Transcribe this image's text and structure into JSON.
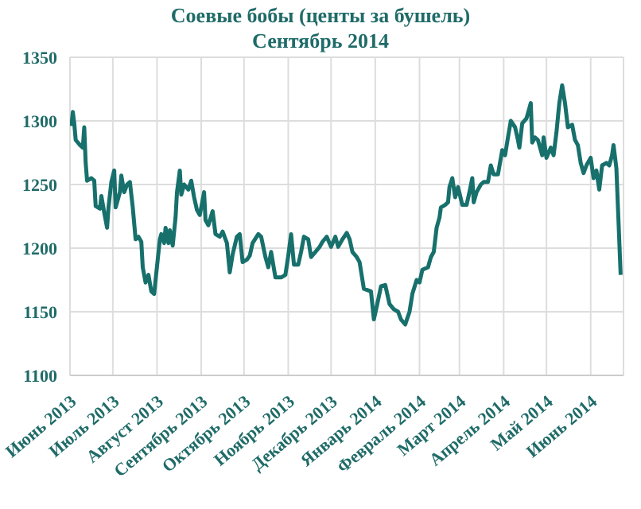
{
  "chart_data": {
    "type": "line",
    "title": "Соевые бобы (центы за бушель)",
    "subtitle": "Сентябрь 2014",
    "x": [
      "2013-06-02",
      "2013-06-03",
      "2013-06-04",
      "2013-06-05",
      "2013-06-08",
      "2013-06-10",
      "2013-06-11",
      "2013-06-12",
      "2013-06-13",
      "2013-06-16",
      "2013-06-18",
      "2013-06-19",
      "2013-06-22",
      "2013-06-23",
      "2013-06-25",
      "2013-06-27",
      "2013-06-28",
      "2013-06-30",
      "2013-07-02",
      "2013-07-03",
      "2013-07-06",
      "2013-07-07",
      "2013-07-09",
      "2013-07-11",
      "2013-07-13",
      "2013-07-15",
      "2013-07-17",
      "2013-07-19",
      "2013-07-21",
      "2013-07-22",
      "2013-07-24",
      "2013-07-26",
      "2013-07-28",
      "2013-07-30",
      "2013-07-31",
      "2013-08-03",
      "2013-08-04",
      "2013-08-06",
      "2013-08-07",
      "2013-08-09",
      "2013-08-10",
      "2013-08-12",
      "2013-08-14",
      "2013-08-15",
      "2013-08-17",
      "2013-08-18",
      "2013-08-20",
      "2013-08-23",
      "2013-08-25",
      "2013-08-27",
      "2013-08-29",
      "2013-08-31",
      "2013-09-03",
      "2013-09-04",
      "2013-09-06",
      "2013-09-09",
      "2013-09-11",
      "2013-09-14",
      "2013-09-16",
      "2013-09-19",
      "2013-09-21",
      "2013-09-23",
      "2013-09-26",
      "2013-09-28",
      "2013-09-30",
      "2013-10-03",
      "2013-10-05",
      "2013-10-07",
      "2013-10-11",
      "2013-10-13",
      "2013-10-16",
      "2013-10-18",
      "2013-10-20",
      "2013-10-23",
      "2013-10-27",
      "2013-10-30",
      "2013-11-01",
      "2013-11-03",
      "2013-11-05",
      "2013-11-08",
      "2013-11-10",
      "2013-11-12",
      "2013-11-15",
      "2013-11-17",
      "2013-11-20",
      "2013-11-23",
      "2013-11-25",
      "2013-11-28",
      "2013-12-01",
      "2013-12-04",
      "2013-12-06",
      "2013-12-09",
      "2013-12-12",
      "2013-12-14",
      "2013-12-16",
      "2013-12-19",
      "2013-12-21",
      "2013-12-24",
      "2013-12-29",
      "2013-12-31",
      "2014-01-02",
      "2014-01-05",
      "2014-01-08",
      "2014-01-11",
      "2014-01-14",
      "2014-01-17",
      "2014-01-19",
      "2014-01-22",
      "2014-01-25",
      "2014-01-27",
      "2014-01-30",
      "2014-02-01",
      "2014-02-03",
      "2014-02-07",
      "2014-02-09",
      "2014-02-11",
      "2014-02-13",
      "2014-02-15",
      "2014-02-16",
      "2014-02-19",
      "2014-02-21",
      "2014-02-22",
      "2014-02-24",
      "2014-02-26",
      "2014-02-28",
      "2014-03-03",
      "2014-03-06",
      "2014-03-08",
      "2014-03-10",
      "2014-03-11",
      "2014-03-13",
      "2014-03-16",
      "2014-03-18",
      "2014-03-21",
      "2014-03-23",
      "2014-03-25",
      "2014-03-28",
      "2014-03-31",
      "2014-04-02",
      "2014-04-04",
      "2014-04-06",
      "2014-04-09",
      "2014-04-11",
      "2014-04-12",
      "2014-04-14",
      "2014-04-17",
      "2014-04-20",
      "2014-04-21",
      "2014-04-23",
      "2014-04-25",
      "2014-04-28",
      "2014-04-29",
      "2014-05-01",
      "2014-05-04",
      "2014-05-06",
      "2014-05-08",
      "2014-05-10",
      "2014-05-12",
      "2014-05-14",
      "2014-05-16",
      "2014-05-19",
      "2014-05-21",
      "2014-05-23",
      "2014-05-25",
      "2014-05-27",
      "2014-05-29",
      "2014-06-01",
      "2014-06-03",
      "2014-06-05",
      "2014-06-07",
      "2014-06-09",
      "2014-06-12",
      "2014-06-14",
      "2014-06-16",
      "2014-06-17",
      "2014-06-19",
      "2014-06-22"
    ],
    "series": [
      {
        "color": "#17706c",
        "values": [
          1296,
          1307,
          1298,
          1285,
          1281,
          1279,
          1295,
          1267,
          1253,
          1255,
          1253,
          1233,
          1231,
          1241,
          1228,
          1216,
          1232,
          1252,
          1261,
          1232,
          1244,
          1257,
          1244,
          1250,
          1252,
          1232,
          1207,
          1209,
          1205,
          1185,
          1173,
          1179,
          1166,
          1164,
          1175,
          1207,
          1211,
          1204,
          1216,
          1204,
          1214,
          1202,
          1224,
          1244,
          1261,
          1242,
          1250,
          1246,
          1253,
          1240,
          1230,
          1226,
          1244,
          1222,
          1218,
          1229,
          1211,
          1209,
          1213,
          1204,
          1181,
          1195,
          1209,
          1211,
          1189,
          1191,
          1194,
          1204,
          1211,
          1209,
          1193,
          1185,
          1197,
          1177,
          1177,
          1179,
          1194,
          1211,
          1187,
          1187,
          1197,
          1209,
          1207,
          1193,
          1197,
          1201,
          1205,
          1209,
          1201,
          1209,
          1201,
          1207,
          1212,
          1207,
          1197,
          1193,
          1189,
          1168,
          1166,
          1144,
          1154,
          1170,
          1171,
          1156,
          1152,
          1150,
          1144,
          1140,
          1150,
          1164,
          1175,
          1173,
          1183,
          1185,
          1193,
          1197,
          1216,
          1224,
          1232,
          1234,
          1236,
          1248,
          1255,
          1240,
          1248,
          1234,
          1234,
          1244,
          1255,
          1236,
          1244,
          1250,
          1252,
          1252,
          1265,
          1258,
          1258,
          1277,
          1273,
          1287,
          1300,
          1295,
          1285,
          1279,
          1298,
          1302,
          1314,
          1283,
          1287,
          1285,
          1273,
          1287,
          1271,
          1279,
          1273,
          1291,
          1314,
          1328,
          1314,
          1295,
          1297,
          1285,
          1281,
          1267,
          1259,
          1265,
          1271,
          1255,
          1261,
          1246,
          1265,
          1267,
          1265,
          1273,
          1281,
          1263,
          1179
        ]
      }
    ],
    "xlim": [
      "2013-06-01",
      "2014-06-24"
    ],
    "xticks": [
      {
        "value": "2013-06-01",
        "label": "Июнь 2013"
      },
      {
        "value": "2013-07-01",
        "label": "Июль 2013"
      },
      {
        "value": "2013-08-01",
        "label": "Август 2013"
      },
      {
        "value": "2013-09-01",
        "label": "Сентябрь 2013"
      },
      {
        "value": "2013-10-01",
        "label": "Октябрь 2013"
      },
      {
        "value": "2013-11-01",
        "label": "Ноябрь 2013"
      },
      {
        "value": "2013-12-01",
        "label": "Декабрь 2013"
      },
      {
        "value": "2014-01-01",
        "label": "Январь 2014"
      },
      {
        "value": "2014-02-01",
        "label": "Февраль 2014"
      },
      {
        "value": "2014-03-01",
        "label": "Март 2014"
      },
      {
        "value": "2014-04-01",
        "label": "Апрель 2014"
      },
      {
        "value": "2014-05-01",
        "label": "Май 2014"
      },
      {
        "value": "2014-06-01",
        "label": "Июнь 2014"
      }
    ],
    "ylim": [
      1100,
      1350
    ],
    "yticks": [
      1100,
      1150,
      1200,
      1250,
      1300,
      1350
    ],
    "grid": true,
    "legend": false,
    "line_style": "solid"
  }
}
